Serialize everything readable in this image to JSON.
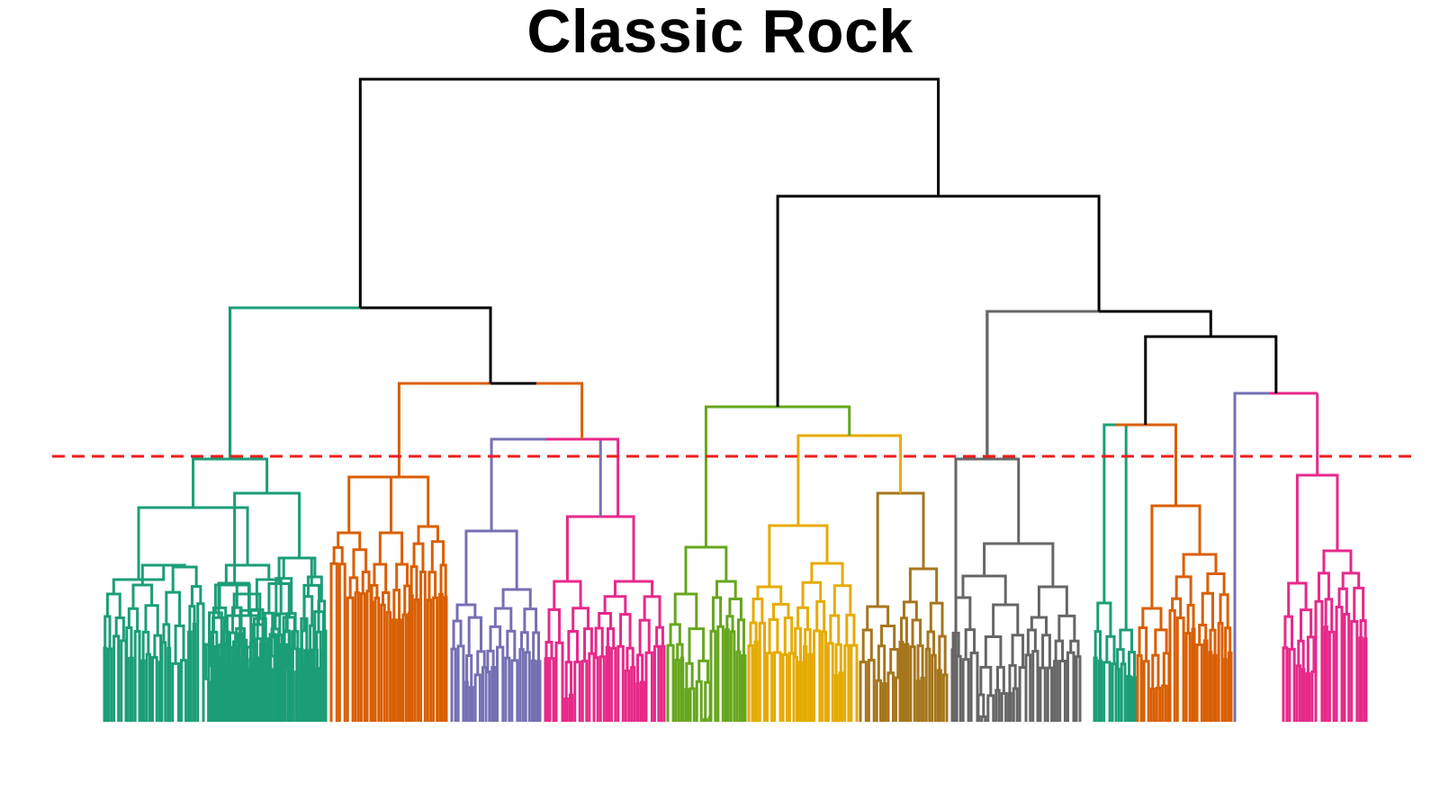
{
  "title": "Classic Rock",
  "colors": {
    "trunk": "#000000",
    "cut_line": "#ee1c1c",
    "teal": "#1b9e77",
    "orange": "#d95f02",
    "purple": "#7570b3",
    "pink": "#e7298a",
    "green": "#66a61e",
    "gold": "#e6ab02",
    "brown": "#a6761d",
    "gray": "#666666"
  },
  "cut_line": {
    "style": "dashed"
  },
  "clusters": [
    {
      "name": "cluster-1",
      "color_key": "teal"
    },
    {
      "name": "cluster-2",
      "color_key": "orange"
    },
    {
      "name": "cluster-3",
      "color_key": "purple"
    },
    {
      "name": "cluster-4",
      "color_key": "pink"
    },
    {
      "name": "cluster-5",
      "color_key": "green"
    },
    {
      "name": "cluster-6",
      "color_key": "gold"
    },
    {
      "name": "cluster-7",
      "color_key": "brown"
    },
    {
      "name": "cluster-8",
      "color_key": "gray"
    },
    {
      "name": "cluster-9",
      "color_key": "teal"
    },
    {
      "name": "cluster-10",
      "color_key": "orange"
    },
    {
      "name": "cluster-11",
      "color_key": "purple"
    },
    {
      "name": "cluster-12",
      "color_key": "pink"
    }
  ]
}
